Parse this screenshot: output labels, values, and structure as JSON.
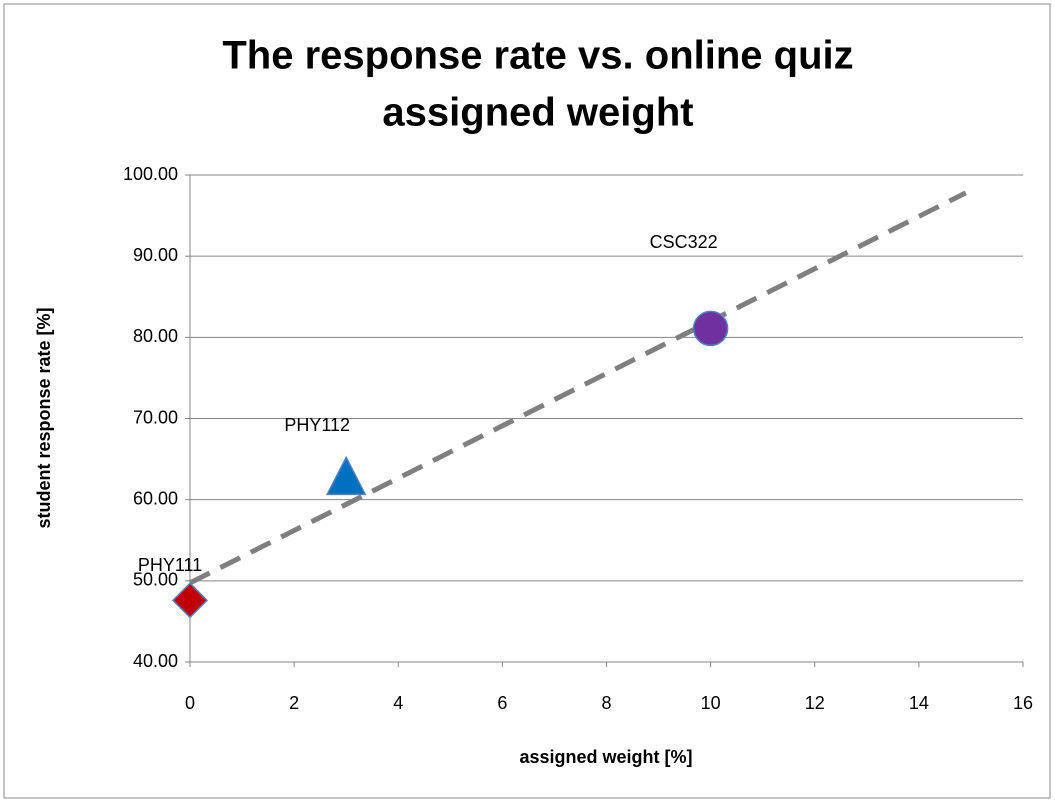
{
  "chart_data": {
    "type": "scatter",
    "title": [
      "The response rate vs. online quiz",
      "assigned weight"
    ],
    "xlabel": "assigned weight [%]",
    "ylabel": "student response rate [%]",
    "points": [
      {
        "label": "PHY111",
        "x": 0,
        "y": 47.6,
        "color": "#c00000",
        "marker": "diamond"
      },
      {
        "label": "PHY112",
        "x": 3,
        "y": 62.5,
        "color": "#0070c0",
        "marker": "triangle"
      },
      {
        "label": "CSC322",
        "x": 10,
        "y": 81.1,
        "color": "#7030a0",
        "marker": "circle"
      }
    ],
    "trendline": {
      "x": [
        0,
        14.9
      ],
      "y": [
        49.75,
        97.8
      ],
      "color": "#7f7f7f",
      "dashed": true
    },
    "xlim": [
      0,
      16
    ],
    "xticks": [
      0,
      2,
      4,
      6,
      8,
      10,
      12,
      14,
      16
    ],
    "ylim": [
      40,
      100
    ],
    "yticks": [
      {
        "value": 40,
        "label": "40.00"
      },
      {
        "value": 50,
        "label": "50.00"
      },
      {
        "value": 60,
        "label": "60.00"
      },
      {
        "value": 70,
        "label": "70.00"
      },
      {
        "value": 80,
        "label": "80.00"
      },
      {
        "value": 90,
        "label": "90.00"
      },
      {
        "value": 100,
        "label": "100.00"
      }
    ],
    "grid": true
  }
}
